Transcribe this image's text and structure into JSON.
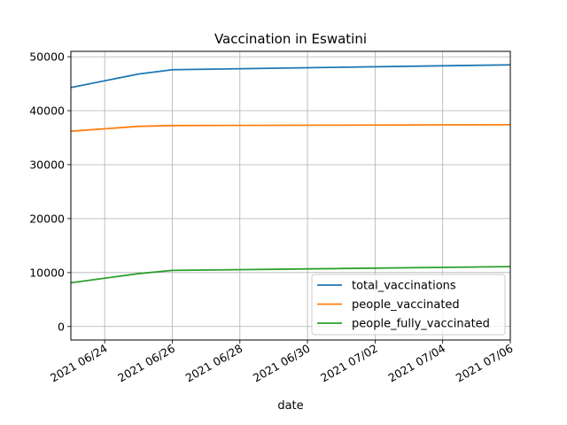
{
  "chart_data": {
    "type": "line",
    "title": "Vaccination in Eswatini",
    "xlabel": "date",
    "ylabel": "",
    "x": [
      "2021-06-23",
      "2021-06-25",
      "2021-06-26",
      "2021-07-06"
    ],
    "xlim": [
      "2021-06-23",
      "2021-07-06"
    ],
    "ylim": [
      -2500,
      51000
    ],
    "xticks": [
      {
        "date": "2021-06-24",
        "label": "2021 06/24"
      },
      {
        "date": "2021-06-26",
        "label": "2021 06/26"
      },
      {
        "date": "2021-06-28",
        "label": "2021 06/28"
      },
      {
        "date": "2021-06-30",
        "label": "2021 06/30"
      },
      {
        "date": "2021-07-02",
        "label": "2021 07/02"
      },
      {
        "date": "2021-07-04",
        "label": "2021 07/04"
      },
      {
        "date": "2021-07-06",
        "label": "2021 07/06"
      }
    ],
    "yticks": [
      {
        "value": 0,
        "label": "0"
      },
      {
        "value": 10000,
        "label": "10000"
      },
      {
        "value": 20000,
        "label": "20000"
      },
      {
        "value": 30000,
        "label": "30000"
      },
      {
        "value": 40000,
        "label": "40000"
      },
      {
        "value": 50000,
        "label": "50000"
      }
    ],
    "grid": true,
    "legend_position": "lower-right",
    "series": [
      {
        "name": "total_vaccinations",
        "color": "#1f77b4",
        "values": [
          44300,
          46800,
          47600,
          48500
        ]
      },
      {
        "name": "people_vaccinated",
        "color": "#ff7f0e",
        "values": [
          36200,
          37100,
          37250,
          37400
        ]
      },
      {
        "name": "people_fully_vaccinated",
        "color": "#2ca02c",
        "values": [
          8100,
          9800,
          10400,
          11100
        ]
      }
    ]
  }
}
